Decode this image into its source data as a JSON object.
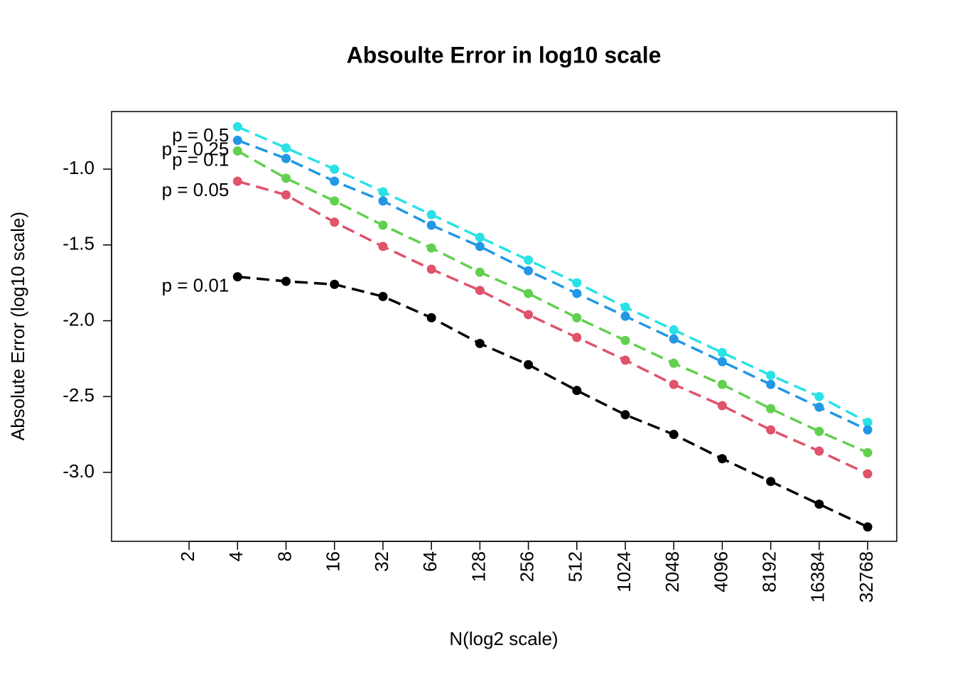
{
  "chart_data": {
    "type": "line",
    "title": "Absoulte Error in log10 scale",
    "x_label": "N(log2 scale)",
    "y_label": "Absolute Error (log10 scale)",
    "x": [
      4,
      8,
      16,
      32,
      64,
      128,
      256,
      512,
      1024,
      2048,
      4096,
      8192,
      16384,
      32768
    ],
    "xscale": "log2",
    "xlim": [
      0.66,
      49667
    ],
    "xticks": [
      2,
      4,
      8,
      16,
      32,
      64,
      128,
      256,
      512,
      1024,
      2048,
      4096,
      8192,
      16384,
      32768
    ],
    "ylim": [
      -3.455,
      -0.62
    ],
    "yticks": [
      {
        "value": -1,
        "label": "-1.0"
      },
      {
        "value": -1.5,
        "label": "-1.5"
      },
      {
        "value": -2,
        "label": "-2.0"
      },
      {
        "value": -2.5,
        "label": "-2.5"
      },
      {
        "value": -3,
        "label": "-3.0"
      }
    ],
    "grid": false,
    "series": [
      {
        "name": "p = 0.5",
        "color": "#28e2e5",
        "values": [
          -0.72,
          -0.86,
          -1.0,
          -1.15,
          -1.3,
          -1.45,
          -1.6,
          -1.75,
          -1.91,
          -2.06,
          -2.21,
          -2.36,
          -2.5,
          -2.67
        ]
      },
      {
        "name": "p = 0.25",
        "color": "#2297e6",
        "values": [
          -0.81,
          -0.93,
          -1.08,
          -1.21,
          -1.37,
          -1.51,
          -1.67,
          -1.82,
          -1.97,
          -2.12,
          -2.27,
          -2.42,
          -2.57,
          -2.72
        ]
      },
      {
        "name": "p = 0.1",
        "color": "#61d04f",
        "values": [
          -0.88,
          -1.06,
          -1.21,
          -1.37,
          -1.52,
          -1.68,
          -1.82,
          -1.98,
          -2.13,
          -2.28,
          -2.42,
          -2.58,
          -2.73,
          -2.87
        ]
      },
      {
        "name": "p = 0.05",
        "color": "#df536b",
        "values": [
          -1.08,
          -1.17,
          -1.35,
          -1.51,
          -1.66,
          -1.8,
          -1.96,
          -2.11,
          -2.26,
          -2.42,
          -2.56,
          -2.72,
          -2.86,
          -3.01
        ]
      },
      {
        "name": "p = 0.01",
        "color": "#000000",
        "values": [
          -1.71,
          -1.74,
          -1.76,
          -1.84,
          -1.98,
          -2.15,
          -2.29,
          -2.46,
          -2.62,
          -2.75,
          -2.91,
          -3.06,
          -3.21,
          -3.36
        ]
      }
    ]
  }
}
